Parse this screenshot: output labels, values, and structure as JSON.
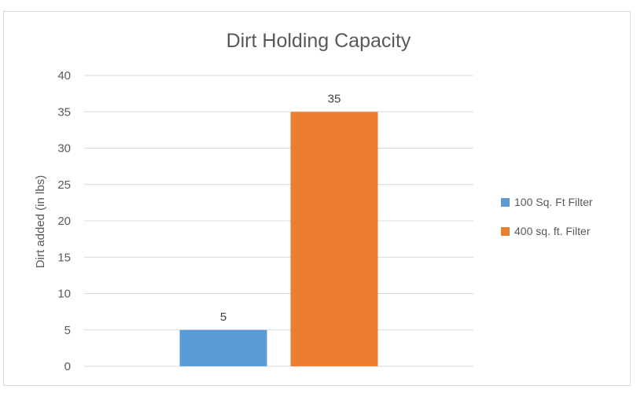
{
  "chart_data": {
    "type": "bar",
    "title": "Dirt Holding Capacity",
    "xlabel": "",
    "ylabel": "Dirt added (in lbs)",
    "ylim": [
      0,
      40
    ],
    "yticks": [
      0,
      5,
      10,
      15,
      20,
      25,
      30,
      35,
      40
    ],
    "grid": true,
    "legend_position": "right",
    "series": [
      {
        "name": "100 Sq. Ft Filter",
        "values": [
          5
        ],
        "color": "#5b9bd5"
      },
      {
        "name": "400 sq. ft. Filter",
        "values": [
          35
        ],
        "color": "#ed7d31"
      }
    ],
    "data_labels": [
      "5",
      "35"
    ]
  }
}
